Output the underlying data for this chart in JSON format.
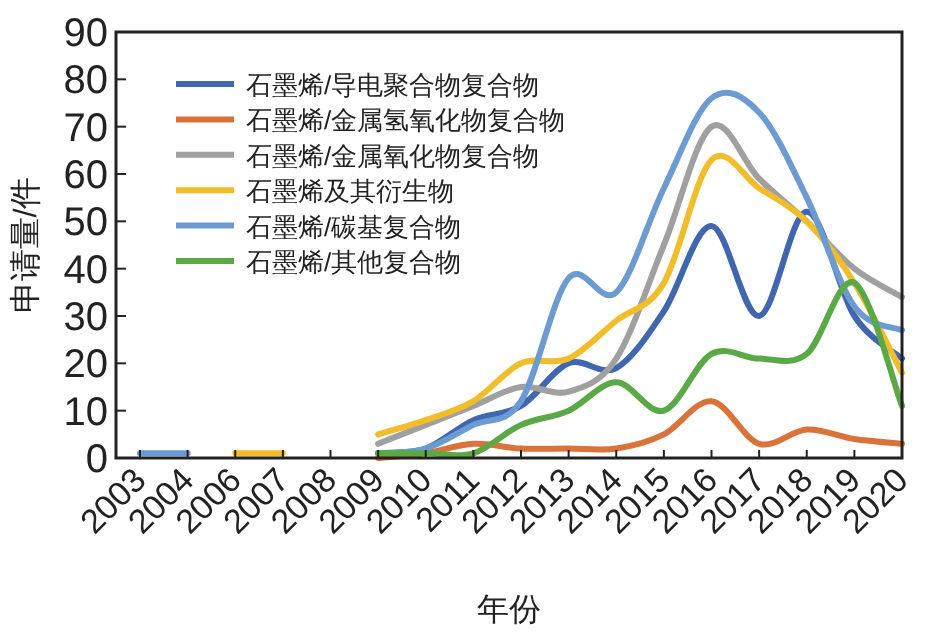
{
  "chart_data": {
    "type": "line",
    "xlabel": "年份",
    "ylabel": "申请量/件",
    "categories": [
      "2003",
      "2004",
      "2006",
      "2007",
      "2008",
      "2009",
      "2010",
      "2011",
      "2012",
      "2013",
      "2014",
      "2015",
      "2016",
      "2017",
      "2018",
      "2019",
      "2020"
    ],
    "ylim": [
      0,
      90
    ],
    "yticks": [
      0,
      10,
      20,
      30,
      40,
      50,
      60,
      70,
      80,
      90
    ],
    "grid": false,
    "legend": "top left",
    "marker": "none",
    "line_style": "solid",
    "series": [
      {
        "name": "石墨烯/导电聚合物复合物",
        "color": "#3f66ae",
        "values": [
          null,
          null,
          null,
          null,
          null,
          1,
          2,
          8,
          11,
          20,
          19,
          31,
          49,
          30,
          52,
          30,
          21
        ]
      },
      {
        "name": "石墨烯/金属氢氧化物复合物",
        "color": "#d9733a",
        "values": [
          null,
          null,
          null,
          null,
          null,
          0,
          1,
          3,
          2,
          2,
          2,
          5,
          12,
          3,
          6,
          4,
          3
        ]
      },
      {
        "name": "石墨烯/金属氧化物复合物",
        "color": "#a0a0a0",
        "values": [
          null,
          null,
          null,
          null,
          null,
          3,
          7,
          11,
          15,
          14,
          21,
          45,
          70,
          59,
          50,
          40,
          34
        ]
      },
      {
        "name": "石墨烯及其衍生物",
        "color": "#f2bd2a",
        "values": [
          null,
          null,
          1,
          1,
          null,
          5,
          8,
          12,
          20,
          21,
          29,
          37,
          63,
          57,
          50,
          37,
          18
        ]
      },
      {
        "name": "石墨烯/碳基复合物",
        "color": "#6b9bd1",
        "values": [
          1,
          1,
          null,
          null,
          null,
          1,
          2,
          7,
          12,
          38,
          35,
          57,
          76,
          73,
          55,
          32,
          27
        ]
      },
      {
        "name": "石墨烯/其他复合物",
        "color": "#5aa846",
        "values": [
          null,
          null,
          null,
          null,
          null,
          1,
          1,
          1,
          7,
          10,
          16,
          10,
          22,
          21,
          22,
          37,
          11
        ]
      }
    ]
  }
}
